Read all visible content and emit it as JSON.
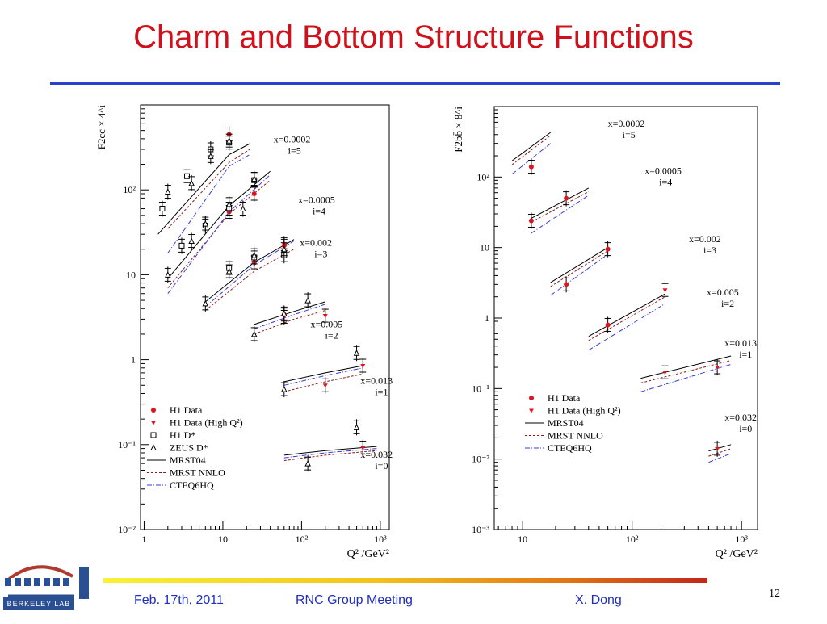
{
  "slide": {
    "title": "Charm and Bottom Structure Functions",
    "page_number": "12",
    "footer": {
      "date": "Feb. 17th, 2011",
      "meeting": "RNC Group Meeting",
      "author": "X. Dong"
    },
    "logo_text": "BERKELEY LAB",
    "colors": {
      "title": "#d0101a",
      "rule": "#2b3fcf",
      "footer_text": "#1f2fbf",
      "h1": "#e0141e",
      "mrst_nnlo": "#8b1a1a",
      "cteq": "#3a3ad8"
    }
  },
  "chart_data": [
    {
      "type": "scatter",
      "ylabel": "F2cc̄ × 4^i",
      "xlabel": "Q² /GeV²",
      "xscale": "log",
      "yscale": "log",
      "xlim": [
        0.9,
        1300
      ],
      "ylim": [
        0.01,
        1000
      ],
      "xticks": [
        {
          "v": 1,
          "label": "1"
        },
        {
          "v": 10,
          "label": "10"
        },
        {
          "v": 100,
          "label": "10²"
        },
        {
          "v": 1000,
          "label": "10³"
        }
      ],
      "yticks": [
        {
          "v": 0.01,
          "label": "10⁻²"
        },
        {
          "v": 0.1,
          "label": "10⁻¹"
        },
        {
          "v": 1,
          "label": "1"
        },
        {
          "v": 10,
          "label": "10"
        },
        {
          "v": 100,
          "label": "10²"
        }
      ],
      "legend": [
        {
          "label": "H1 Data",
          "marker": "dot"
        },
        {
          "label": "H1 Data (High Q²)",
          "marker": "tri-down"
        },
        {
          "label": "H1 D*",
          "marker": "square"
        },
        {
          "label": "ZEUS D*",
          "marker": "tri-up"
        },
        {
          "label": "MRST04",
          "line": "solid"
        },
        {
          "label": "MRST NNLO",
          "line": "dashed"
        },
        {
          "label": "CTEQ6HQ",
          "line": "dashdot"
        }
      ],
      "bins": [
        {
          "x_label": "x=0.0002",
          "i_label": "i=5",
          "label_at": [
            44,
            360
          ],
          "curves": {
            "mrst04": [
              [
                1.5,
                30
              ],
              [
                12,
                260
              ],
              [
                22,
                350
              ]
            ],
            "mrst_nnlo": [
              [
                2,
                35
              ],
              [
                12,
                210
              ],
              [
                22,
                300
              ]
            ],
            "cteq": [
              [
                2,
                18
              ],
              [
                12,
                190
              ],
              [
                22,
                260
              ]
            ]
          },
          "h1": [
            [
              12,
              450
            ]
          ],
          "h1_high": [],
          "h1dstar": [
            [
              1.7,
              60
            ],
            [
              3.5,
              145
            ],
            [
              7,
              300
            ],
            [
              12,
              360
            ]
          ],
          "zeus": [
            [
              2,
              95
            ],
            [
              4,
              120
            ],
            [
              7,
              250
            ],
            [
              12,
              380
            ]
          ]
        },
        {
          "x_label": "x=0.0005",
          "i_label": "i=4",
          "label_at": [
            90,
            70
          ],
          "curves": {
            "mrst04": [
              [
                2,
                9
              ],
              [
                12,
                65
              ],
              [
                40,
                165
              ]
            ],
            "mrst_nnlo": [
              [
                2,
                7
              ],
              [
                12,
                52
              ],
              [
                40,
                130
              ]
            ],
            "cteq": [
              [
                2,
                6
              ],
              [
                12,
                55
              ],
              [
                40,
                150
              ]
            ]
          },
          "h1": [
            [
              12,
              55
            ],
            [
              25,
              90
            ]
          ],
          "h1_high": [],
          "h1dstar": [
            [
              3,
              22
            ],
            [
              6,
              38
            ],
            [
              12,
              60
            ],
            [
              25,
              130
            ]
          ],
          "zeus": [
            [
              2,
              10
            ],
            [
              4,
              25
            ],
            [
              6,
              40
            ],
            [
              12,
              68
            ],
            [
              18,
              60
            ],
            [
              25,
              135
            ]
          ]
        },
        {
          "x_label": "x=0.002",
          "i_label": "i=3",
          "label_at": [
            95,
            22
          ],
          "curves": {
            "mrst04": [
              [
                6,
                4.8
              ],
              [
                25,
                14
              ],
              [
                80,
                26
              ]
            ],
            "mrst_nnlo": [
              [
                6,
                3.8
              ],
              [
                25,
                11
              ],
              [
                80,
                20
              ]
            ],
            "cteq": [
              [
                6,
                4.2
              ],
              [
                25,
                13
              ],
              [
                80,
                25
              ]
            ]
          },
          "h1": [
            [
              25,
              14
            ],
            [
              60,
              22
            ]
          ],
          "h1_high": [
            [
              60,
              23
            ]
          ],
          "h1dstar": [
            [
              12,
              12
            ],
            [
              25,
              16
            ],
            [
              60,
              17
            ]
          ],
          "zeus": [
            [
              6,
              4.6
            ],
            [
              12,
              11
            ],
            [
              25,
              17
            ],
            [
              60,
              20
            ]
          ]
        },
        {
          "x_label": "x=0.005",
          "i_label": "i=2",
          "label_at": [
            130,
            2.4
          ],
          "curves": {
            "mrst04": [
              [
                25,
                2.6
              ],
              [
                80,
                3.7
              ],
              [
                200,
                4.8
              ]
            ],
            "mrst_nnlo": [
              [
                25,
                2.0
              ],
              [
                80,
                3.0
              ],
              [
                200,
                3.8
              ]
            ],
            "cteq": [
              [
                25,
                2.3
              ],
              [
                80,
                3.4
              ],
              [
                200,
                4.5
              ]
            ]
          },
          "h1": [
            [
              60,
              3.4
            ]
          ],
          "h1_high": [
            [
              60,
              3.2
            ],
            [
              200,
              3.3
            ]
          ],
          "h1dstar": [],
          "zeus": [
            [
              25,
              2.0
            ],
            [
              60,
              3.5
            ],
            [
              120,
              5.0
            ]
          ]
        },
        {
          "x_label": "x=0.013",
          "i_label": "i=1",
          "label_at": [
            560,
            0.52
          ],
          "curves": {
            "mrst04": [
              [
                60,
                0.55
              ],
              [
                200,
                0.7
              ],
              [
                600,
                0.85
              ]
            ],
            "mrst_nnlo": [
              [
                60,
                0.42
              ],
              [
                200,
                0.55
              ],
              [
                600,
                0.68
              ]
            ],
            "cteq": [
              [
                60,
                0.5
              ],
              [
                200,
                0.65
              ],
              [
                600,
                0.8
              ]
            ]
          },
          "h1": [],
          "h1_high": [
            [
              200,
              0.5
            ],
            [
              600,
              0.85
            ]
          ],
          "h1dstar": [],
          "zeus": [
            [
              60,
              0.45
            ],
            [
              500,
              1.2
            ]
          ]
        },
        {
          "x_label": "x=0.032",
          "i_label": "i=0",
          "label_at": [
            560,
            0.07
          ],
          "curves": {
            "mrst04": [
              [
                60,
                0.075
              ],
              [
                200,
                0.085
              ],
              [
                900,
                0.095
              ]
            ],
            "mrst_nnlo": [
              [
                60,
                0.065
              ],
              [
                200,
                0.075
              ],
              [
                900,
                0.085
              ]
            ],
            "cteq": [
              [
                60,
                0.07
              ],
              [
                200,
                0.08
              ],
              [
                900,
                0.09
              ]
            ]
          },
          "h1": [],
          "h1_high": [
            [
              600,
              0.092
            ]
          ],
          "h1dstar": [],
          "zeus": [
            [
              120,
              0.06
            ],
            [
              500,
              0.16
            ]
          ]
        }
      ]
    },
    {
      "type": "scatter",
      "ylabel": "F2bb̄ × 8^i",
      "xlabel": "Q² /GeV²",
      "xscale": "log",
      "yscale": "log",
      "xlim": [
        5.5,
        1400
      ],
      "ylim": [
        0.001,
        1000
      ],
      "xticks": [
        {
          "v": 10,
          "label": "10"
        },
        {
          "v": 100,
          "label": "10²"
        },
        {
          "v": 1000,
          "label": "10³"
        }
      ],
      "yticks": [
        {
          "v": 0.001,
          "label": "10⁻³"
        },
        {
          "v": 0.01,
          "label": "10⁻²"
        },
        {
          "v": 0.1,
          "label": "10⁻¹"
        },
        {
          "v": 1,
          "label": "1"
        },
        {
          "v": 10,
          "label": "10"
        },
        {
          "v": 100,
          "label": "10²"
        }
      ],
      "legend": [
        {
          "label": "H1 Data",
          "marker": "dot"
        },
        {
          "label": "H1 Data (High Q²)",
          "marker": "tri-down"
        },
        {
          "label": "MRST04",
          "line": "solid"
        },
        {
          "label": "MRST NNLO",
          "line": "dashed"
        },
        {
          "label": "CTEQ6HQ",
          "line": "dashdot"
        }
      ],
      "bins": [
        {
          "x_label": "x=0.0002",
          "i_label": "i=5",
          "label_at": [
            60,
            520
          ],
          "curves": {
            "mrst04": [
              [
                8,
                170
              ],
              [
                18,
                430
              ]
            ],
            "mrst_nnlo": [
              [
                8,
                150
              ],
              [
                18,
                390
              ]
            ],
            "cteq": [
              [
                8,
                110
              ],
              [
                18,
                300
              ]
            ]
          },
          "h1": [
            [
              12,
              140
            ]
          ],
          "h1_high": [],
          "h1dstar": [],
          "zeus": []
        },
        {
          "x_label": "x=0.0005",
          "i_label": "i=4",
          "label_at": [
            130,
            110
          ],
          "curves": {
            "mrst04": [
              [
                12,
                26
              ],
              [
                40,
                70
              ]
            ],
            "mrst_nnlo": [
              [
                12,
                23
              ],
              [
                40,
                62
              ]
            ],
            "cteq": [
              [
                12,
                16
              ],
              [
                40,
                55
              ]
            ]
          },
          "h1": [
            [
              12,
              24
            ],
            [
              25,
              50
            ]
          ],
          "h1_high": [],
          "h1dstar": [],
          "zeus": []
        },
        {
          "x_label": "x=0.002",
          "i_label": "i=3",
          "label_at": [
            330,
            12
          ],
          "curves": {
            "mrst04": [
              [
                18,
                3.2
              ],
              [
                60,
                10
              ]
            ],
            "mrst_nnlo": [
              [
                18,
                2.8
              ],
              [
                60,
                9
              ]
            ],
            "cteq": [
              [
                18,
                2.1
              ],
              [
                60,
                8
              ]
            ]
          },
          "h1": [
            [
              25,
              3.0
            ],
            [
              60,
              9.5
            ]
          ],
          "h1_high": [],
          "h1dstar": [],
          "zeus": []
        },
        {
          "x_label": "x=0.005",
          "i_label": "i=2",
          "label_at": [
            480,
            2.1
          ],
          "curves": {
            "mrst04": [
              [
                40,
                0.55
              ],
              [
                200,
                2.2
              ]
            ],
            "mrst_nnlo": [
              [
                40,
                0.48
              ],
              [
                200,
                2.0
              ]
            ],
            "cteq": [
              [
                40,
                0.35
              ],
              [
                200,
                1.6
              ]
            ]
          },
          "h1": [
            [
              60,
              0.8
            ]
          ],
          "h1_high": [
            [
              200,
              2.5
            ]
          ],
          "h1dstar": [],
          "zeus": []
        },
        {
          "x_label": "x=0.013",
          "i_label": "i=1",
          "label_at": [
            700,
            0.4
          ],
          "curves": {
            "mrst04": [
              [
                120,
                0.14
              ],
              [
                800,
                0.29
              ]
            ],
            "mrst_nnlo": [
              [
                120,
                0.12
              ],
              [
                800,
                0.25
              ]
            ],
            "cteq": [
              [
                120,
                0.09
              ],
              [
                800,
                0.22
              ]
            ]
          },
          "h1": [],
          "h1_high": [
            [
              200,
              0.17
            ],
            [
              600,
              0.2
            ]
          ],
          "h1dstar": [],
          "zeus": []
        },
        {
          "x_label": "x=0.032",
          "i_label": "i=0",
          "label_at": [
            700,
            0.035
          ],
          "curves": {
            "mrst04": [
              [
                500,
                0.013
              ],
              [
                800,
                0.016
              ]
            ],
            "mrst_nnlo": [
              [
                500,
                0.011
              ],
              [
                800,
                0.014
              ]
            ],
            "cteq": [
              [
                500,
                0.009
              ],
              [
                800,
                0.012
              ]
            ]
          },
          "h1": [],
          "h1_high": [
            [
              600,
              0.014
            ]
          ],
          "h1dstar": [],
          "zeus": []
        }
      ]
    }
  ]
}
